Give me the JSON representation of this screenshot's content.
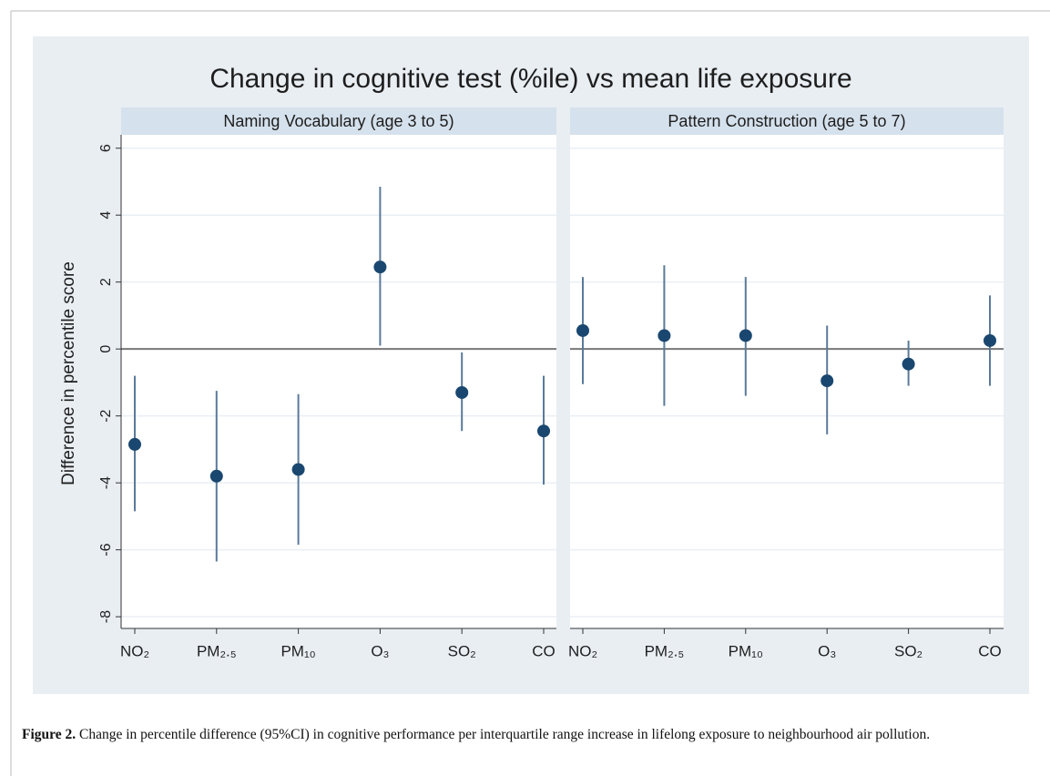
{
  "chart_data": {
    "type": "errorbar",
    "title": "Change in cognitive test (%ile) vs mean life exposure",
    "ylabel": "Difference in percentile score",
    "ylim": [
      -8.35,
      6.4
    ],
    "yticks": [
      6,
      4,
      2,
      0,
      -2,
      -4,
      -6,
      -8
    ],
    "grid": true,
    "color": "#1a476f",
    "bar_color": "#5a7a99",
    "categories": [
      "NO₂",
      "PM₂.₅",
      "PM₁₀",
      "O₃",
      "SO₂",
      "CO"
    ],
    "panels": [
      {
        "title": "Naming Vocabulary (age 3 to 5)",
        "values": [
          -2.85,
          -3.8,
          -3.6,
          2.45,
          -1.3,
          -2.45
        ],
        "lower": [
          -4.85,
          -6.35,
          -5.85,
          0.1,
          -2.45,
          -4.05
        ],
        "upper": [
          -0.8,
          -1.25,
          -1.35,
          4.85,
          -0.1,
          -0.8
        ]
      },
      {
        "title": "Pattern Construction (age 5 to 7)",
        "values": [
          0.55,
          0.4,
          0.4,
          -0.95,
          -0.45,
          0.25
        ],
        "lower": [
          -1.05,
          -1.7,
          -1.4,
          -2.55,
          -1.1,
          -1.1
        ],
        "upper": [
          2.15,
          2.5,
          2.15,
          0.7,
          0.25,
          1.6
        ]
      }
    ]
  },
  "caption": {
    "label": "Figure 2.",
    "text": "Change in percentile difference (95%CI) in cognitive performance per interquartile range increase in lifelong exposure to neighbourhood air pollution."
  }
}
